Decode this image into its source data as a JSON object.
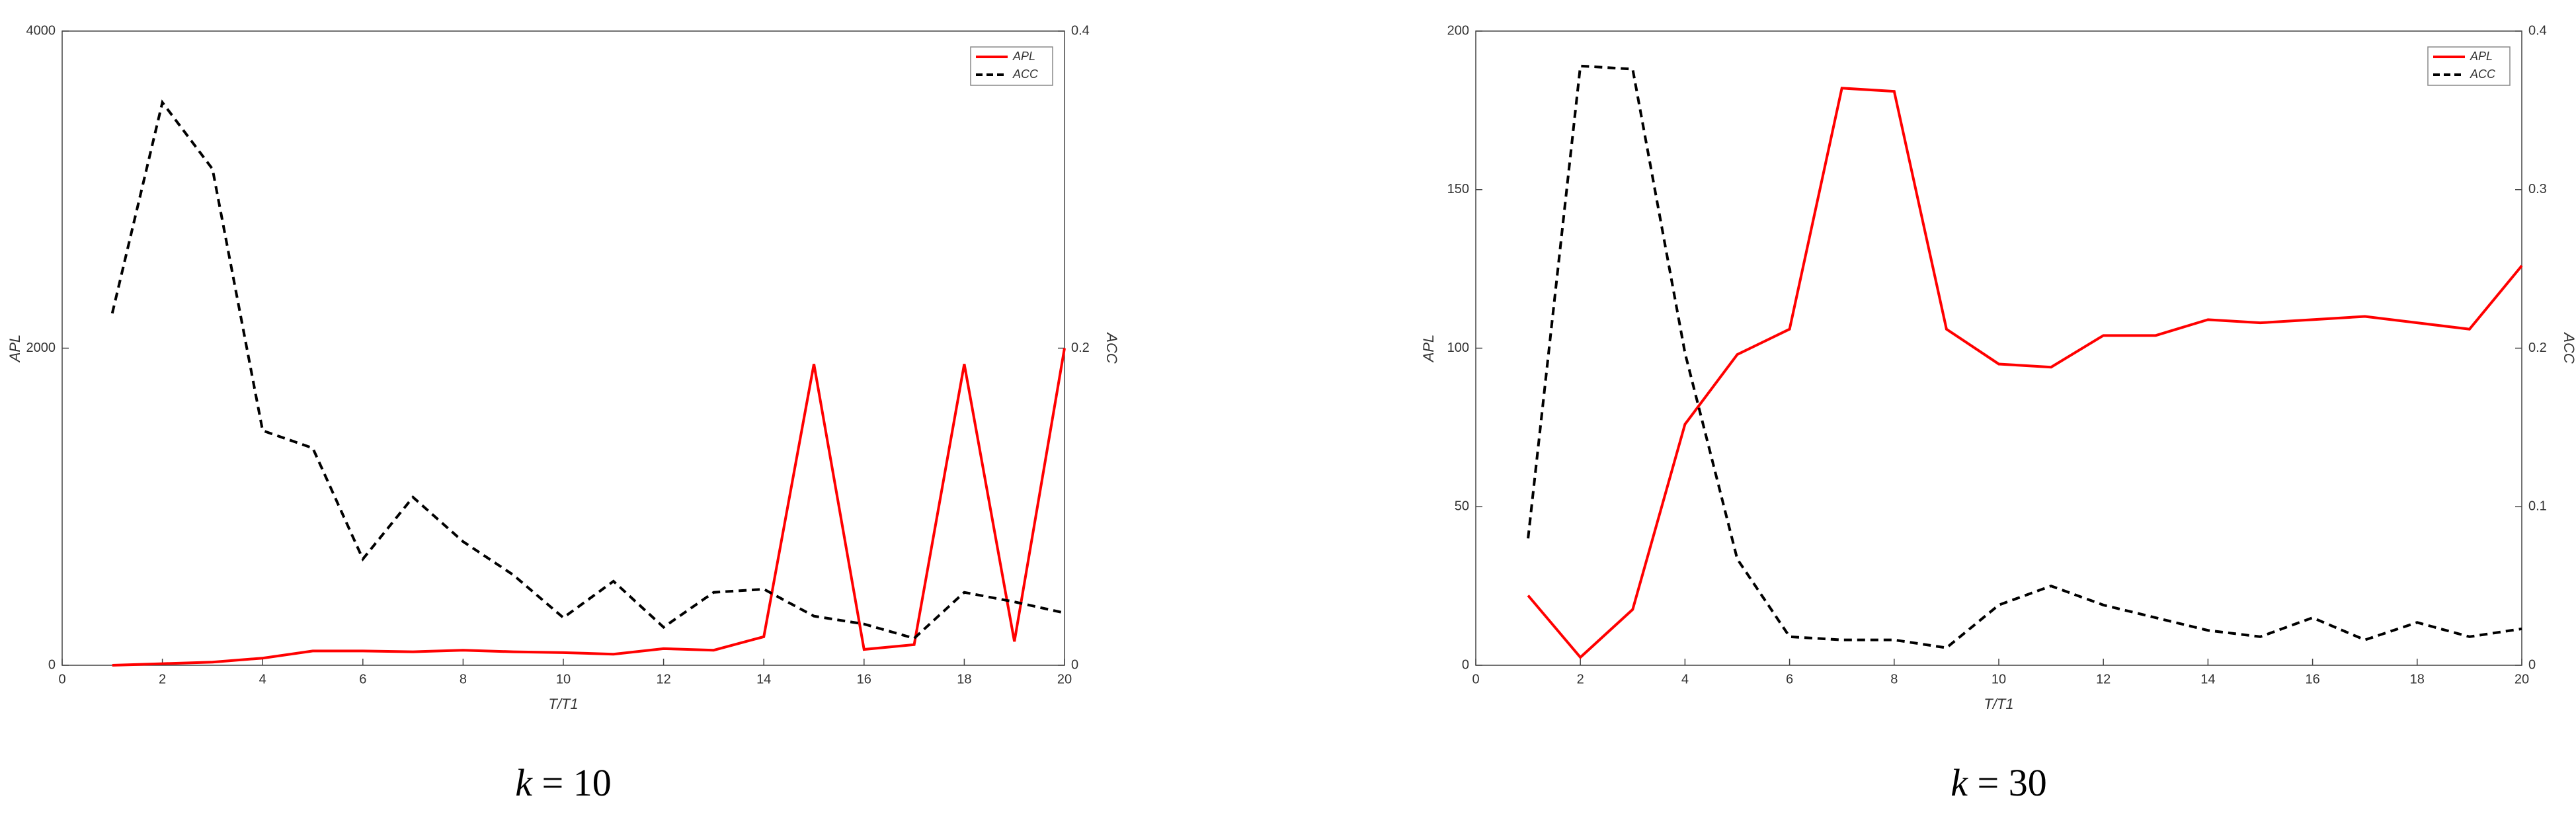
{
  "chart_data": [
    {
      "type": "line",
      "xlabel": "T/T1",
      "ylabel": "APL",
      "y2label": "ACC",
      "caption_var": "k",
      "caption_value": "= 10",
      "x": [
        1,
        2,
        3,
        4,
        5,
        6,
        7,
        8,
        9,
        10,
        11,
        12,
        13,
        14,
        15,
        16,
        17,
        18,
        19,
        20
      ],
      "xlim": [
        0,
        20
      ],
      "xticks": [
        0,
        2,
        4,
        6,
        8,
        10,
        12,
        14,
        16,
        18,
        20
      ],
      "ylim": [
        0,
        4000
      ],
      "yticks": [
        0,
        2000,
        4000
      ],
      "y2lim": [
        0,
        0.4
      ],
      "y2ticks": [
        0,
        0.2,
        0.4
      ],
      "legend": "upper right",
      "series": [
        {
          "name": "APL",
          "color": "#ff0000",
          "linestyle": "solid",
          "values": [
            0,
            10,
            20,
            45,
            90,
            90,
            85,
            95,
            85,
            80,
            70,
            105,
            95,
            180,
            1900,
            100,
            130,
            1900,
            150,
            2000
          ]
        },
        {
          "name": "ACC",
          "color": "#000000",
          "linestyle": "dashed",
          "axis": "y2",
          "values": [
            0.222,
            0.355,
            0.313,
            0.148,
            0.137,
            0.067,
            0.106,
            0.078,
            0.057,
            0.03,
            0.053,
            0.024,
            0.046,
            0.048,
            0.031,
            0.026,
            0.017,
            0.046,
            0.04,
            0.033
          ]
        }
      ]
    },
    {
      "type": "line",
      "xlabel": "T/T1",
      "ylabel": "APL",
      "y2label": "ACC",
      "caption_var": "k",
      "caption_value": "= 30",
      "x": [
        1,
        2,
        3,
        4,
        5,
        6,
        7,
        8,
        9,
        10,
        11,
        12,
        13,
        14,
        15,
        16,
        17,
        18,
        19,
        20
      ],
      "xlim": [
        0,
        20
      ],
      "xticks": [
        0,
        2,
        4,
        6,
        8,
        10,
        12,
        14,
        16,
        18,
        20
      ],
      "ylim": [
        0,
        200
      ],
      "yticks": [
        0,
        50,
        100,
        150,
        200
      ],
      "y2lim": [
        0,
        0.4
      ],
      "y2ticks": [
        0,
        0.1,
        0.2,
        0.3,
        0.4
      ],
      "legend": "upper right",
      "series": [
        {
          "name": "APL",
          "color": "#ff0000",
          "linestyle": "solid",
          "values": [
            22,
            2.5,
            17.6,
            76,
            98,
            106,
            182,
            181,
            106,
            95,
            94,
            104,
            104,
            109,
            108,
            109,
            110,
            108,
            106,
            126
          ]
        },
        {
          "name": "ACC",
          "color": "#000000",
          "linestyle": "dashed",
          "axis": "y2",
          "values": [
            0.08,
            0.378,
            0.376,
            0.197,
            0.067,
            0.018,
            0.016,
            0.016,
            0.011,
            0.038,
            0.05,
            0.038,
            0.03,
            0.022,
            0.018,
            0.03,
            0.016,
            0.027,
            0.018,
            0.023
          ]
        }
      ]
    }
  ]
}
